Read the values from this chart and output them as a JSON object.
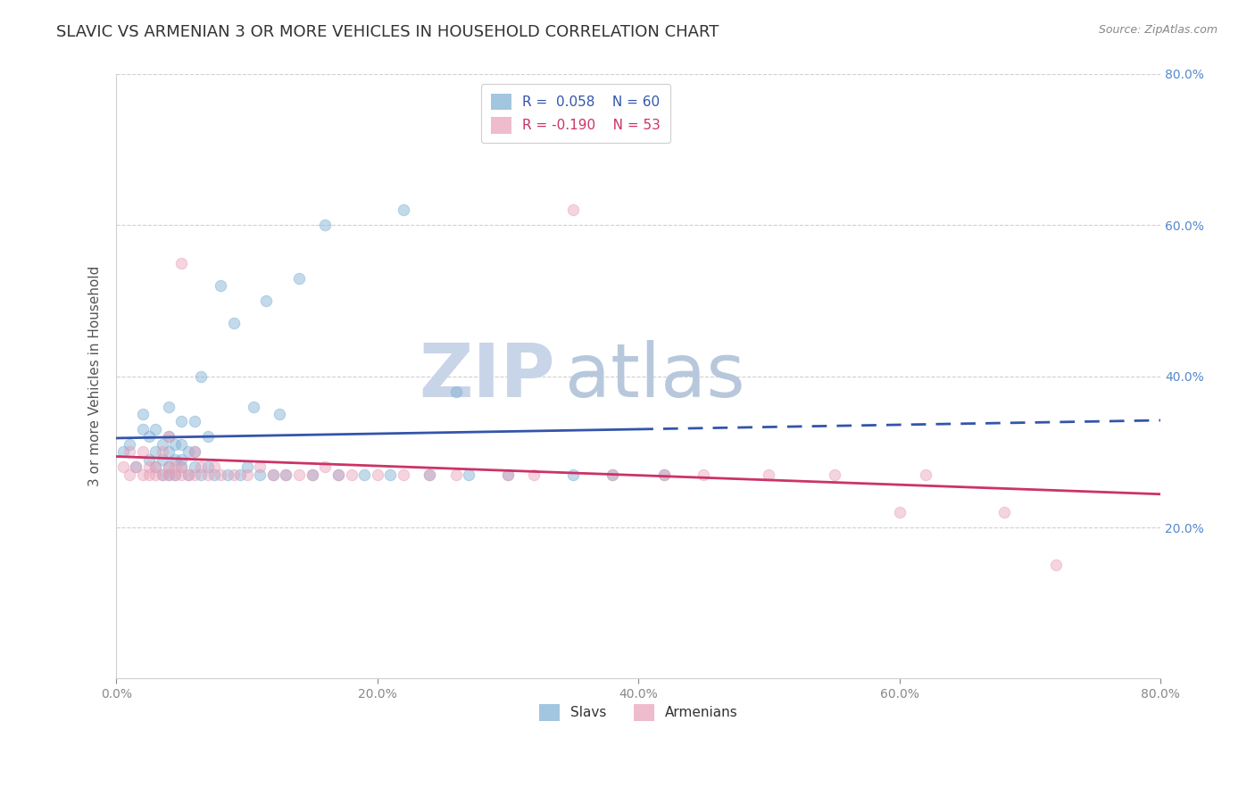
{
  "title": "SLAVIC VS ARMENIAN 3 OR MORE VEHICLES IN HOUSEHOLD CORRELATION CHART",
  "source_text": "Source: ZipAtlas.com",
  "ylabel": "3 or more Vehicles in Household",
  "xlim": [
    0.0,
    0.8
  ],
  "ylim": [
    0.0,
    0.8
  ],
  "x_tick_labels": [
    "0.0%",
    "20.0%",
    "40.0%",
    "60.0%",
    "80.0%"
  ],
  "x_tick_values": [
    0.0,
    0.2,
    0.4,
    0.6,
    0.8
  ],
  "y_tick_labels": [
    "20.0%",
    "40.0%",
    "60.0%",
    "80.0%"
  ],
  "y_tick_values": [
    0.2,
    0.4,
    0.6,
    0.8
  ],
  "right_y_tick_labels": [
    "20.0%",
    "40.0%",
    "60.0%",
    "80.0%"
  ],
  "right_y_tick_values": [
    0.2,
    0.4,
    0.6,
    0.8
  ],
  "legend_label_slavs": "R =  0.058    N = 60",
  "legend_label_armenians": "R = -0.190    N = 53",
  "legend_labels_bottom": [
    "Slavs",
    "Armenians"
  ],
  "slavs_color": "#7bafd4",
  "armenians_color": "#e8a0b8",
  "slavs_line_color": "#3355aa",
  "armenians_line_color": "#cc3366",
  "slavs_line_dash_threshold": 0.4,
  "watermark_zip": "ZIP",
  "watermark_atlas": "atlas",
  "watermark_color_zip": "#c8d4e8",
  "watermark_color_atlas": "#b8c8dc",
  "slavs_x": [
    0.005,
    0.01,
    0.015,
    0.02,
    0.02,
    0.025,
    0.025,
    0.03,
    0.03,
    0.03,
    0.035,
    0.035,
    0.035,
    0.04,
    0.04,
    0.04,
    0.04,
    0.04,
    0.045,
    0.045,
    0.045,
    0.05,
    0.05,
    0.05,
    0.05,
    0.055,
    0.055,
    0.06,
    0.06,
    0.06,
    0.065,
    0.065,
    0.07,
    0.07,
    0.075,
    0.08,
    0.085,
    0.09,
    0.095,
    0.1,
    0.105,
    0.11,
    0.115,
    0.12,
    0.125,
    0.13,
    0.14,
    0.15,
    0.16,
    0.17,
    0.19,
    0.21,
    0.22,
    0.24,
    0.26,
    0.27,
    0.3,
    0.35,
    0.38,
    0.42
  ],
  "slavs_y": [
    0.3,
    0.31,
    0.28,
    0.33,
    0.35,
    0.29,
    0.32,
    0.28,
    0.3,
    0.33,
    0.27,
    0.29,
    0.31,
    0.27,
    0.28,
    0.3,
    0.32,
    0.36,
    0.27,
    0.29,
    0.31,
    0.28,
    0.29,
    0.31,
    0.34,
    0.27,
    0.3,
    0.28,
    0.3,
    0.34,
    0.27,
    0.4,
    0.28,
    0.32,
    0.27,
    0.52,
    0.27,
    0.47,
    0.27,
    0.28,
    0.36,
    0.27,
    0.5,
    0.27,
    0.35,
    0.27,
    0.53,
    0.27,
    0.6,
    0.27,
    0.27,
    0.27,
    0.62,
    0.27,
    0.38,
    0.27,
    0.27,
    0.27,
    0.27,
    0.27
  ],
  "armenians_x": [
    0.005,
    0.01,
    0.01,
    0.015,
    0.02,
    0.02,
    0.025,
    0.025,
    0.03,
    0.03,
    0.035,
    0.035,
    0.04,
    0.04,
    0.04,
    0.045,
    0.045,
    0.05,
    0.05,
    0.05,
    0.055,
    0.06,
    0.06,
    0.065,
    0.07,
    0.075,
    0.08,
    0.09,
    0.1,
    0.11,
    0.12,
    0.13,
    0.14,
    0.15,
    0.16,
    0.17,
    0.18,
    0.2,
    0.22,
    0.24,
    0.26,
    0.3,
    0.32,
    0.35,
    0.38,
    0.42,
    0.45,
    0.5,
    0.55,
    0.6,
    0.62,
    0.68,
    0.72
  ],
  "armenians_y": [
    0.28,
    0.27,
    0.3,
    0.28,
    0.27,
    0.3,
    0.27,
    0.28,
    0.27,
    0.28,
    0.27,
    0.3,
    0.27,
    0.28,
    0.32,
    0.27,
    0.28,
    0.27,
    0.28,
    0.55,
    0.27,
    0.27,
    0.3,
    0.28,
    0.27,
    0.28,
    0.27,
    0.27,
    0.27,
    0.28,
    0.27,
    0.27,
    0.27,
    0.27,
    0.28,
    0.27,
    0.27,
    0.27,
    0.27,
    0.27,
    0.27,
    0.27,
    0.27,
    0.62,
    0.27,
    0.27,
    0.27,
    0.27,
    0.27,
    0.22,
    0.27,
    0.22,
    0.15
  ],
  "slavs_R": 0.058,
  "armenians_R": -0.19,
  "slavs_N": 60,
  "armenians_N": 53,
  "background_color": "#ffffff",
  "grid_color": "#d0d0d0",
  "title_color": "#333333",
  "watermark_fontsize": 60,
  "title_fontsize": 13,
  "label_fontsize": 11,
  "tick_fontsize": 10,
  "legend_fontsize": 11,
  "marker_size": 80,
  "marker_alpha": 0.45
}
